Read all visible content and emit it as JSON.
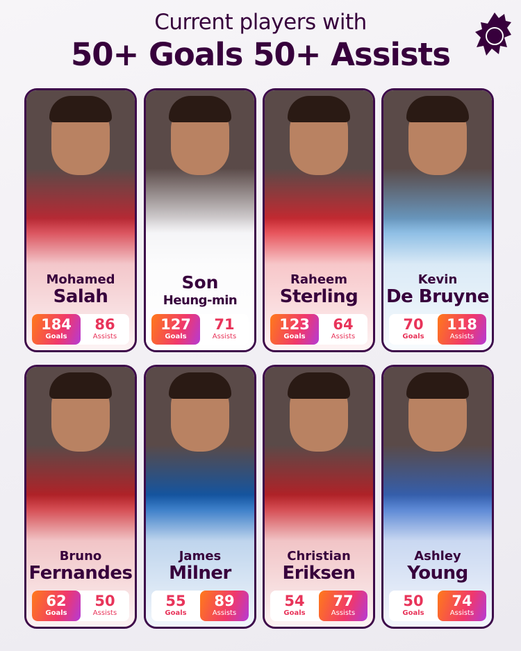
{
  "header": {
    "subtitle": "Current players with",
    "title": "50+ Goals 50+ Assists",
    "logo": "premier-league-lion-logo"
  },
  "labels": {
    "goals": "Goals",
    "assists": "Assists"
  },
  "colors": {
    "brand": "#37003c",
    "accent_gradient_start": "#ff7a1a",
    "accent_gradient_end": "#b43ad6",
    "stat_text": "#e8345a"
  },
  "players": [
    {
      "first": "Mohamed",
      "last": "Salah",
      "goals": "184",
      "assists": "86",
      "highlight": "goals",
      "kit": "#d0202e"
    },
    {
      "first": "Son",
      "last": "Heung-min",
      "goals": "127",
      "assists": "71",
      "highlight": "goals",
      "kit": "#f2f2f5"
    },
    {
      "first": "Raheem",
      "last": "Sterling",
      "goals": "123",
      "assists": "64",
      "highlight": "goals",
      "kit": "#e0202a"
    },
    {
      "first": "Kevin",
      "last": "De Bruyne",
      "goals": "70",
      "assists": "118",
      "highlight": "assists",
      "kit": "#6cabdd"
    },
    {
      "first": "Bruno",
      "last": "Fernandes",
      "goals": "62",
      "assists": "50",
      "highlight": "goals",
      "kit": "#c8161e"
    },
    {
      "first": "James",
      "last": "Milner",
      "goals": "55",
      "assists": "89",
      "highlight": "assists",
      "kit": "#0057b8"
    },
    {
      "first": "Christian",
      "last": "Eriksen",
      "goals": "54",
      "assists": "77",
      "highlight": "assists",
      "kit": "#c8161e"
    },
    {
      "first": "Ashley",
      "last": "Young",
      "goals": "50",
      "assists": "74",
      "highlight": "assists",
      "kit": "#2a64c8"
    }
  ]
}
